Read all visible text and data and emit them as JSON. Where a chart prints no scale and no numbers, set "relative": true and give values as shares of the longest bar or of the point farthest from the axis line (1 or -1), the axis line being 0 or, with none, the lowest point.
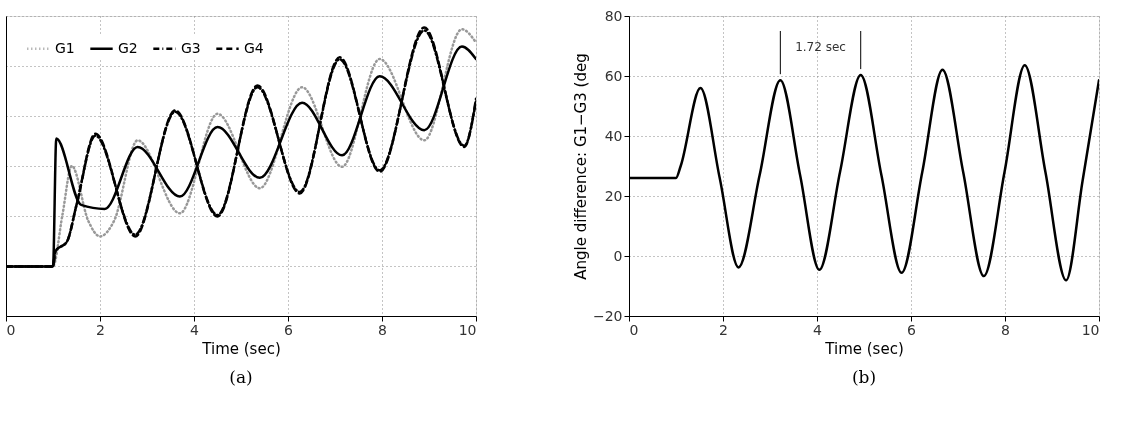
{
  "chart_data": [
    {
      "type": "line",
      "relative": true,
      "xlabel": "Time (sec)",
      "xlim": [
        0,
        10
      ],
      "xticks": [
        0,
        2,
        4,
        6,
        8,
        10
      ],
      "tick_labels": "x",
      "grid": true,
      "legend": "top left",
      "annotations": [
        "(a)"
      ],
      "series": [
        {
          "name": "G1",
          "color": "#999999",
          "line_style": "dotted",
          "x": [
            0,
            1.0,
            1.2,
            1.4,
            1.75,
            2.0,
            2.3,
            2.8,
            3.7,
            4.5,
            5.4,
            6.3,
            7.15,
            7.95,
            8.9,
            9.7,
            10
          ],
          "values": [
            0.172,
            0.172,
            0.35,
            0.52,
            0.33,
            0.276,
            0.33,
            0.609,
            0.356,
            0.701,
            0.443,
            0.793,
            0.517,
            0.891,
            0.609,
            0.994,
            0.948
          ]
        },
        {
          "name": "G2",
          "color": "#000000",
          "line_style": "solid",
          "x": [
            0,
            1.0,
            1.07,
            1.6,
            2.1,
            2.8,
            3.7,
            4.5,
            5.4,
            6.3,
            7.15,
            7.95,
            8.9,
            9.7,
            10
          ],
          "values": [
            0.172,
            0.172,
            0.615,
            0.385,
            0.371,
            0.586,
            0.414,
            0.655,
            0.479,
            0.739,
            0.557,
            0.831,
            0.644,
            0.934,
            0.891
          ]
        },
        {
          "name": "G3",
          "color": "#000000",
          "line_style": "dashdot",
          "x": [
            0,
            1.0,
            1.05,
            1.3,
            1.5,
            1.9,
            2.75,
            3.6,
            4.5,
            5.35,
            6.25,
            7.1,
            7.95,
            8.9,
            9.75,
            10
          ],
          "values": [
            0.172,
            0.172,
            0.224,
            0.259,
            0.385,
            0.625,
            0.282,
            0.708,
            0.35,
            0.793,
            0.43,
            0.89,
            0.505,
            0.99,
            0.59,
            0.745
          ]
        },
        {
          "name": "G4",
          "color": "#000000",
          "line_style": "dashed",
          "x": [
            0,
            1.0,
            1.05,
            1.3,
            1.5,
            1.9,
            2.75,
            3.6,
            4.5,
            5.35,
            6.25,
            7.1,
            7.95,
            8.9,
            9.75,
            10
          ],
          "values": [
            0.172,
            0.172,
            0.224,
            0.259,
            0.385,
            0.632,
            0.276,
            0.713,
            0.345,
            0.799,
            0.425,
            0.897,
            0.5,
            1.0,
            0.586,
            0.753
          ]
        }
      ]
    },
    {
      "type": "line",
      "xlabel": "Time (sec)",
      "ylabel": "Angle difference: G1−G3 (deg",
      "xlim": [
        0,
        10
      ],
      "xticks": [
        0,
        2,
        4,
        6,
        8,
        10
      ],
      "ylim": [
        -20,
        80
      ],
      "yticks": [
        -20,
        0,
        20,
        40,
        60,
        80
      ],
      "grid": true,
      "legend": false,
      "annotations": [
        "(b)",
        "1.72 sec"
      ],
      "series": [
        {
          "color": "#000000",
          "line_style": "solid",
          "x": [
            0,
            1.0,
            1.1,
            1.52,
            1.93,
            2.33,
            2.78,
            3.22,
            3.64,
            4.05,
            4.49,
            4.93,
            5.37,
            5.8,
            6.24,
            6.67,
            7.11,
            7.55,
            7.99,
            8.42,
            8.86,
            9.3,
            9.65,
            10
          ],
          "values": [
            26,
            26,
            30,
            56,
            26,
            -3.8,
            27,
            58.6,
            27,
            -4.6,
            28,
            60.3,
            27,
            -5.6,
            28,
            62.1,
            28,
            -6.7,
            28,
            63.6,
            28,
            -8.1,
            25,
            58.6
          ]
        }
      ]
    }
  ]
}
